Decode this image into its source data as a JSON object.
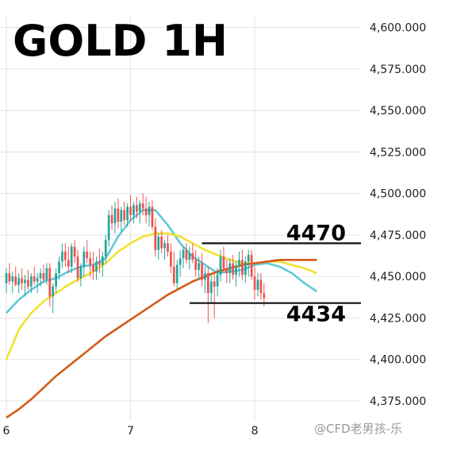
{
  "chart_data": {
    "type": "candlestick",
    "title": "GOLD 1H",
    "y_ticks": [
      "4,600.000",
      "4,575.000",
      "4,550.000",
      "4,525.000",
      "4,500.000",
      "4,475.000",
      "4,450.000",
      "4,425.000",
      "4,400.000",
      "4,375.000"
    ],
    "y_tick_values": [
      4600,
      4575,
      4550,
      4525,
      4500,
      4475,
      4450,
      4425,
      4400,
      4375
    ],
    "ylim": [
      4364,
      4607
    ],
    "x_ticks": [
      "6",
      "7",
      "8"
    ],
    "x_tick_index": [
      0,
      40,
      80
    ],
    "xlim": [
      0,
      104
    ],
    "grid": true,
    "levels": [
      {
        "value": 4470,
        "label": "4470",
        "from_index": 63
      },
      {
        "value": 4434,
        "label": "4434",
        "from_index": 59
      }
    ],
    "candles": [
      [
        4446,
        4455,
        4440,
        4452
      ],
      [
        4452,
        4458,
        4445,
        4447
      ],
      [
        4447,
        4453,
        4440,
        4450
      ],
      [
        4450,
        4456,
        4444,
        4445
      ],
      [
        4445,
        4452,
        4440,
        4449
      ],
      [
        4449,
        4455,
        4442,
        4446
      ],
      [
        4446,
        4451,
        4438,
        4448
      ],
      [
        4448,
        4454,
        4442,
        4444
      ],
      [
        4444,
        4452,
        4440,
        4450
      ],
      [
        4450,
        4456,
        4445,
        4447
      ],
      [
        4447,
        4452,
        4440,
        4449
      ],
      [
        4449,
        4455,
        4444,
        4452
      ],
      [
        4452,
        4457,
        4446,
        4448
      ],
      [
        4448,
        4458,
        4445,
        4455
      ],
      [
        4455,
        4458,
        4432,
        4438
      ],
      [
        4438,
        4446,
        4428,
        4444
      ],
      [
        4444,
        4455,
        4440,
        4452
      ],
      [
        4452,
        4462,
        4448,
        4459
      ],
      [
        4459,
        4470,
        4455,
        4465
      ],
      [
        4465,
        4470,
        4456,
        4460
      ],
      [
        4460,
        4468,
        4452,
        4456
      ],
      [
        4456,
        4470,
        4452,
        4468
      ],
      [
        4468,
        4472,
        4458,
        4462
      ],
      [
        4462,
        4466,
        4447,
        4449
      ],
      [
        4449,
        4458,
        4444,
        4456
      ],
      [
        4456,
        4468,
        4450,
        4465
      ],
      [
        4465,
        4472,
        4458,
        4461
      ],
      [
        4461,
        4465,
        4450,
        4457
      ],
      [
        4457,
        4465,
        4448,
        4453
      ],
      [
        4453,
        4462,
        4448,
        4459
      ],
      [
        4459,
        4467,
        4452,
        4457
      ],
      [
        4457,
        4465,
        4450,
        4462
      ],
      [
        4462,
        4475,
        4458,
        4472
      ],
      [
        4472,
        4490,
        4468,
        4487
      ],
      [
        4487,
        4493,
        4478,
        4482
      ],
      [
        4482,
        4495,
        4476,
        4491
      ],
      [
        4491,
        4497,
        4479,
        4483
      ],
      [
        4483,
        4492,
        4477,
        4490
      ],
      [
        4490,
        4495,
        4481,
        4484
      ],
      [
        4484,
        4494,
        4480,
        4492
      ],
      [
        4492,
        4499,
        4483,
        4487
      ],
      [
        4487,
        4495,
        4482,
        4493
      ],
      [
        4493,
        4498,
        4485,
        4489
      ],
      [
        4489,
        4496,
        4482,
        4494
      ],
      [
        4494,
        4500,
        4487,
        4491
      ],
      [
        4491,
        4498,
        4482,
        4487
      ],
      [
        4487,
        4495,
        4480,
        4492
      ],
      [
        4492,
        4496,
        4478,
        4480
      ],
      [
        4480,
        4485,
        4462,
        4466
      ],
      [
        4466,
        4476,
        4460,
        4474
      ],
      [
        4474,
        4478,
        4464,
        4467
      ],
      [
        4467,
        4472,
        4460,
        4470
      ],
      [
        4470,
        4475,
        4462,
        4465
      ],
      [
        4465,
        4470,
        4452,
        4456
      ],
      [
        4456,
        4465,
        4444,
        4446
      ],
      [
        4446,
        4460,
        4442,
        4457
      ],
      [
        4457,
        4466,
        4450,
        4461
      ],
      [
        4461,
        4468,
        4455,
        4466
      ],
      [
        4466,
        4470,
        4458,
        4460
      ],
      [
        4460,
        4468,
        4454,
        4464
      ],
      [
        4464,
        4470,
        4458,
        4460
      ],
      [
        4460,
        4466,
        4450,
        4454
      ],
      [
        4454,
        4462,
        4448,
        4458
      ],
      [
        4458,
        4464,
        4444,
        4448
      ],
      [
        4448,
        4456,
        4440,
        4452
      ],
      [
        4452,
        4456,
        4422,
        4440
      ],
      [
        4440,
        4451,
        4434,
        4447
      ],
      [
        4447,
        4452,
        4425,
        4444
      ],
      [
        4444,
        4455,
        4438,
        4451
      ],
      [
        4451,
        4466,
        4447,
        4462
      ],
      [
        4462,
        4468,
        4452,
        4455
      ],
      [
        4455,
        4460,
        4446,
        4452
      ],
      [
        4452,
        4461,
        4446,
        4458
      ],
      [
        4458,
        4463,
        4448,
        4451
      ],
      [
        4451,
        4459,
        4444,
        4456
      ],
      [
        4456,
        4465,
        4450,
        4460
      ],
      [
        4460,
        4466,
        4448,
        4451
      ],
      [
        4451,
        4462,
        4446,
        4459
      ],
      [
        4459,
        4466,
        4450,
        4463
      ],
      [
        4463,
        4466,
        4448,
        4450
      ],
      [
        4450,
        4456,
        4436,
        4442
      ],
      [
        4442,
        4452,
        4438,
        4448
      ],
      [
        4448,
        4452,
        4436,
        4440
      ],
      [
        4440,
        4446,
        4432,
        4437
      ]
    ],
    "series": [
      {
        "name": "",
        "color": "#5fc8d8",
        "values": [
          [
            0,
            4428
          ],
          [
            4,
            4436
          ],
          [
            8,
            4442
          ],
          [
            12,
            4447
          ],
          [
            16,
            4449
          ],
          [
            20,
            4453
          ],
          [
            24,
            4456
          ],
          [
            28,
            4457
          ],
          [
            32,
            4461
          ],
          [
            36,
            4474
          ],
          [
            40,
            4484
          ],
          [
            44,
            4490
          ],
          [
            48,
            4490
          ],
          [
            52,
            4481
          ],
          [
            56,
            4470
          ],
          [
            60,
            4462
          ],
          [
            64,
            4457
          ],
          [
            68,
            4452
          ],
          [
            72,
            4453
          ],
          [
            76,
            4454
          ],
          [
            80,
            4457
          ],
          [
            84,
            4458
          ],
          [
            88,
            4456
          ],
          [
            92,
            4452
          ],
          [
            96,
            4446
          ],
          [
            100,
            4441
          ]
        ]
      },
      {
        "name": "",
        "color": "#f2e130",
        "values": [
          [
            0,
            4400
          ],
          [
            4,
            4418
          ],
          [
            8,
            4428
          ],
          [
            12,
            4435
          ],
          [
            16,
            4440
          ],
          [
            20,
            4445
          ],
          [
            24,
            4449
          ],
          [
            28,
            4453
          ],
          [
            32,
            4458
          ],
          [
            36,
            4465
          ],
          [
            40,
            4470
          ],
          [
            44,
            4474
          ],
          [
            48,
            4476
          ],
          [
            52,
            4476
          ],
          [
            56,
            4474
          ],
          [
            60,
            4470
          ],
          [
            64,
            4466
          ],
          [
            68,
            4463
          ],
          [
            72,
            4460
          ],
          [
            76,
            4458
          ],
          [
            80,
            4458
          ],
          [
            84,
            4459
          ],
          [
            88,
            4459
          ],
          [
            92,
            4457
          ],
          [
            96,
            4455
          ],
          [
            100,
            4452
          ]
        ]
      },
      {
        "name": "",
        "color": "#d45a17",
        "values": [
          [
            0,
            4365
          ],
          [
            4,
            4370
          ],
          [
            8,
            4376
          ],
          [
            12,
            4383
          ],
          [
            16,
            4390
          ],
          [
            20,
            4396
          ],
          [
            24,
            4402
          ],
          [
            28,
            4408
          ],
          [
            32,
            4414
          ],
          [
            36,
            4419
          ],
          [
            40,
            4424
          ],
          [
            44,
            4429
          ],
          [
            48,
            4434
          ],
          [
            52,
            4439
          ],
          [
            56,
            4443
          ],
          [
            60,
            4447
          ],
          [
            64,
            4450
          ],
          [
            68,
            4453
          ],
          [
            72,
            4455
          ],
          [
            76,
            4457
          ],
          [
            80,
            4458
          ],
          [
            84,
            4459
          ],
          [
            88,
            4460
          ],
          [
            92,
            4460
          ],
          [
            96,
            4460
          ],
          [
            100,
            4460
          ]
        ]
      }
    ],
    "colors": {
      "up": "#26a69a",
      "down": "#ef5350",
      "level": "#111111",
      "grid": "#e3e3e3"
    },
    "watermark": "@CFD老男孩-乐"
  }
}
